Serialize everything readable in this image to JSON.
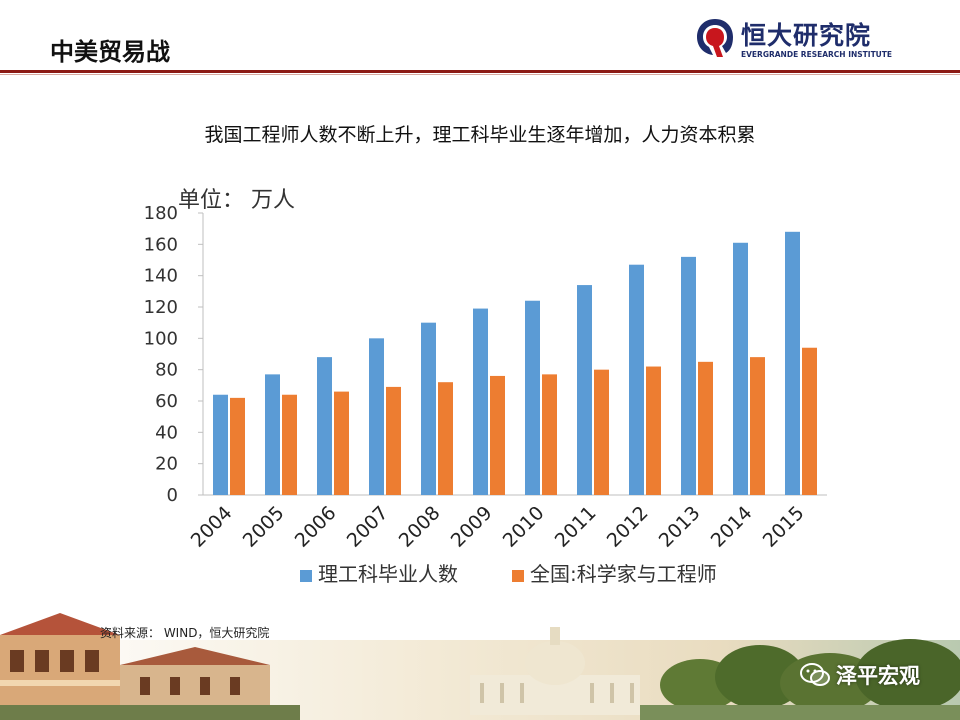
{
  "slide": {
    "title": "中美贸易战"
  },
  "logo": {
    "name_cn": "恒大研究院",
    "name_en": "EVERGRANDE RESEARCH INSTITUTE"
  },
  "chart_data": {
    "type": "bar",
    "title": "我国工程师人数不断上升，理工科毕业生逐年增加，人力资本积累",
    "unit_label": "单位：  万人",
    "categories": [
      "2004",
      "2005",
      "2006",
      "2007",
      "2008",
      "2009",
      "2010",
      "2011",
      "2012",
      "2013",
      "2014",
      "2015"
    ],
    "series": [
      {
        "name": "理工科毕业人数",
        "color": "#5b9bd5",
        "values": [
          64,
          77,
          88,
          100,
          110,
          119,
          124,
          134,
          147,
          152,
          161,
          168
        ]
      },
      {
        "name": "全国:科学家与工程师",
        "color": "#ed7d31",
        "values": [
          62,
          64,
          66,
          69,
          72,
          76,
          77,
          80,
          82,
          85,
          88,
          94
        ]
      }
    ],
    "ylim": [
      0,
      180
    ],
    "yticks": [
      0,
      20,
      40,
      60,
      80,
      100,
      120,
      140,
      160,
      180
    ],
    "grid": false,
    "legend_position": "bottom"
  },
  "source": "资料来源：  WIND，恒大研究院",
  "watermark": {
    "text": "泽平宏观"
  }
}
